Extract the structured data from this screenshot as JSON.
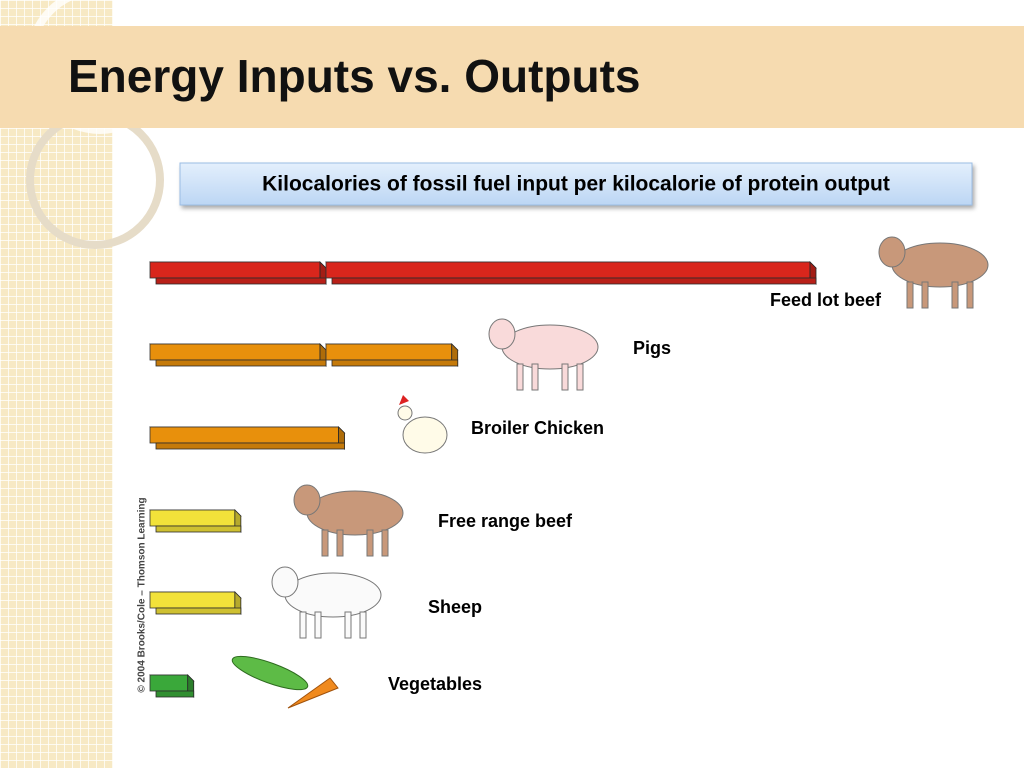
{
  "title": "Energy Inputs vs. Outputs",
  "chart_data": {
    "type": "bar",
    "orientation": "horizontal",
    "title": "Kilocalories of fossil fuel input per kilocalorie of protein output",
    "categories": [
      "Feed lot beef",
      "Pigs",
      "Broiler Chicken",
      "Free range beef",
      "Sheep",
      "Vegetables"
    ],
    "values": [
      35,
      16,
      10,
      4.5,
      4.5,
      2
    ],
    "colors": [
      "#d9261c",
      "#e8900c",
      "#e8900c",
      "#f2e23a",
      "#f2e23a",
      "#3aa83a"
    ],
    "credit": "© 2004 Brooks/Cole – Thomson Learning"
  }
}
